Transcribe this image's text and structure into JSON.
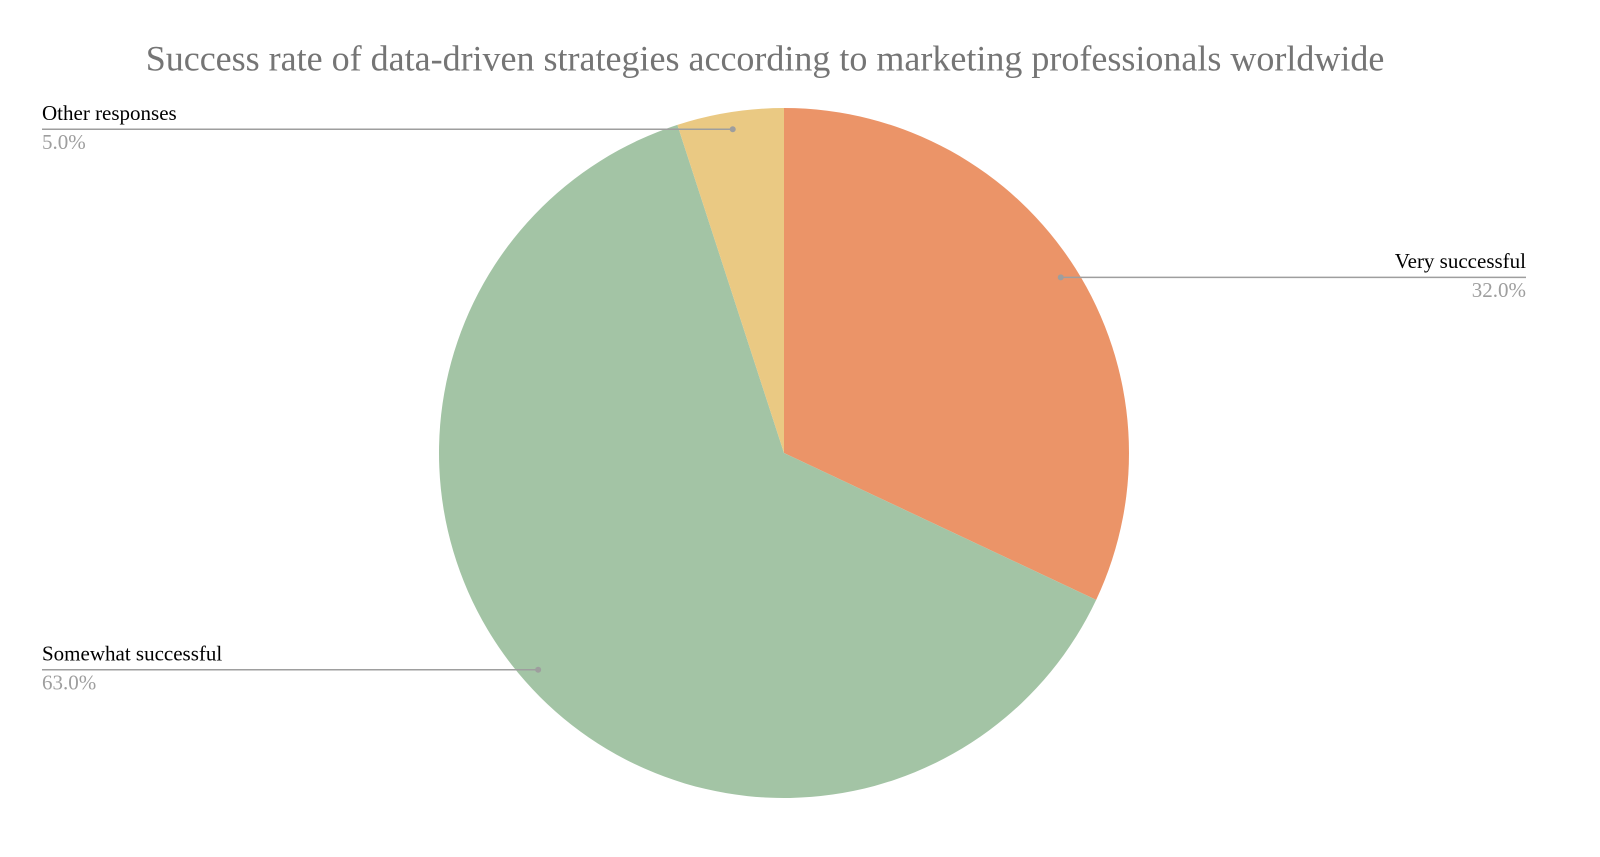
{
  "chart_data": {
    "type": "pie",
    "title": "Success rate of data-driven strategies according to marketing professionals worldwide",
    "categories": [
      "Very successful",
      "Somewhat successful",
      "Other responses"
    ],
    "values": [
      32,
      63,
      5
    ],
    "value_labels": [
      "32.0%",
      "63.0%",
      "5.0%"
    ],
    "colors": [
      "#eb9468",
      "#a3c4a5",
      "#eac983"
    ]
  }
}
